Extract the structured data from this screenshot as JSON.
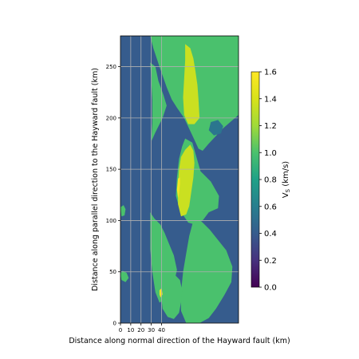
{
  "chart_data": {
    "type": "heatmap",
    "title": "",
    "xlabel": "Distance along normal direction of the Hayward fault (km)",
    "ylabel": "Distance along parallel direction to the Hayward fault (km)",
    "x_ticks": [
      0,
      10,
      20,
      30,
      40
    ],
    "x_tick_labels": [
      "0",
      "10",
      "20",
      "30",
      "40"
    ],
    "y_ticks": [
      0,
      50,
      100,
      150,
      200,
      250
    ],
    "y_tick_labels": [
      "0",
      "50",
      "100",
      "150",
      "200",
      "250"
    ],
    "xlim": [
      0,
      115
    ],
    "ylim": [
      0,
      280
    ],
    "grid": true,
    "colorbar": {
      "label_base": "V",
      "label_sub": "S",
      "label_unit": " (km/s)",
      "range": [
        0.0,
        1.6
      ],
      "ticks": [
        0.0,
        0.2,
        0.4,
        0.6,
        0.8,
        1.0,
        1.2,
        1.4,
        1.6
      ],
      "tick_labels": [
        "0.0",
        "0.2",
        "0.4",
        "0.6",
        "0.8",
        "1.0",
        "1.2",
        "1.4",
        "1.6"
      ],
      "colormap": "viridis"
    },
    "background_value": 0.4,
    "regions": [
      {
        "name": "east-block-upper",
        "value": 1.0,
        "polygon": [
          [
            29,
            280
          ],
          [
            115,
            280
          ],
          [
            115,
            203
          ],
          [
            100,
            190
          ],
          [
            86,
            175
          ],
          [
            80,
            168
          ],
          [
            76,
            170
          ],
          [
            70,
            183
          ],
          [
            62,
            200
          ],
          [
            55,
            210
          ],
          [
            50,
            218
          ],
          [
            45,
            230
          ],
          [
            38,
            250
          ],
          [
            32,
            268
          ]
        ]
      },
      {
        "name": "west-strip-upper",
        "value": 1.0,
        "polygon": [
          [
            29,
            254
          ],
          [
            34,
            250
          ],
          [
            37,
            236
          ],
          [
            42,
            222
          ],
          [
            45,
            212
          ],
          [
            41,
            200
          ],
          [
            34,
            186
          ],
          [
            30,
            177
          ],
          [
            31,
            195
          ],
          [
            31,
            218
          ],
          [
            30,
            238
          ]
        ]
      },
      {
        "name": "central-block",
        "value": 1.0,
        "polygon": [
          [
            63,
            180
          ],
          [
            70,
            176
          ],
          [
            74,
            162
          ],
          [
            78,
            148
          ],
          [
            88,
            138
          ],
          [
            96,
            124
          ],
          [
            95,
            112
          ],
          [
            86,
            108
          ],
          [
            80,
            100
          ],
          [
            73,
            96
          ],
          [
            66,
            98
          ],
          [
            58,
            110
          ],
          [
            54,
            124
          ],
          [
            55,
            142
          ],
          [
            57,
            160
          ],
          [
            60,
            172
          ]
        ]
      },
      {
        "name": "east-block-lower",
        "value": 1.0,
        "polygon": [
          [
            71,
            100
          ],
          [
            79,
            99
          ],
          [
            87,
            91
          ],
          [
            95,
            81
          ],
          [
            103,
            71
          ],
          [
            109,
            55
          ],
          [
            108,
            40
          ],
          [
            101,
            27
          ],
          [
            93,
            14
          ],
          [
            86,
            5
          ],
          [
            77,
            0
          ],
          [
            64,
            0
          ],
          [
            59,
            12
          ],
          [
            59,
            30
          ],
          [
            61,
            50
          ],
          [
            64,
            68
          ],
          [
            67,
            85
          ]
        ]
      },
      {
        "name": "west-strip-lower",
        "value": 1.0,
        "polygon": [
          [
            29,
            108
          ],
          [
            33,
            102
          ],
          [
            39,
            96
          ],
          [
            43,
            88
          ],
          [
            47,
            78
          ],
          [
            52,
            66
          ],
          [
            55,
            52
          ],
          [
            52,
            38
          ],
          [
            47,
            28
          ],
          [
            42,
            22
          ],
          [
            38,
            20
          ],
          [
            34,
            30
          ],
          [
            31,
            50
          ],
          [
            29,
            72
          ],
          [
            29,
            90
          ]
        ]
      },
      {
        "name": "southwest-patch",
        "value": 1.0,
        "polygon": [
          [
            46,
            47
          ],
          [
            52,
            48
          ],
          [
            58,
            42
          ],
          [
            60,
            32
          ],
          [
            59,
            20
          ],
          [
            57,
            10
          ],
          [
            52,
            4
          ],
          [
            46,
            6
          ],
          [
            41,
            14
          ],
          [
            40,
            24
          ],
          [
            42,
            36
          ]
        ]
      },
      {
        "name": "far-west-speck",
        "value": 1.0,
        "polygon": [
          [
            0,
            48
          ],
          [
            2,
            51
          ],
          [
            6,
            49
          ],
          [
            8,
            44
          ],
          [
            5,
            40
          ],
          [
            1,
            42
          ]
        ]
      },
      {
        "name": "west-edge-speck",
        "value": 1.0,
        "polygon": [
          [
            0,
            113
          ],
          [
            3,
            115
          ],
          [
            5,
            111
          ],
          [
            4,
            105
          ],
          [
            1,
            104
          ]
        ]
      },
      {
        "name": "high-velocity-upper",
        "value": 1.35,
        "polygon": [
          [
            63,
            272
          ],
          [
            68,
            268
          ],
          [
            71,
            258
          ],
          [
            73,
            246
          ],
          [
            75,
            232
          ],
          [
            76,
            218
          ],
          [
            77,
            200
          ],
          [
            72,
            194
          ],
          [
            66,
            194
          ],
          [
            62,
            203
          ],
          [
            61,
            220
          ],
          [
            62,
            238
          ],
          [
            63,
            256
          ]
        ]
      },
      {
        "name": "high-velocity-lower",
        "value": 1.35,
        "polygon": [
          [
            63,
            169
          ],
          [
            68,
            174
          ],
          [
            71,
            168
          ],
          [
            72,
            156
          ],
          [
            71,
            142
          ],
          [
            69,
            128
          ],
          [
            67,
            114
          ],
          [
            64,
            106
          ],
          [
            59,
            104
          ],
          [
            56,
            116
          ],
          [
            56,
            134
          ],
          [
            57,
            150
          ],
          [
            59,
            162
          ]
        ]
      },
      {
        "name": "peak-velocity-sliver",
        "value": 1.55,
        "polygon": [
          [
            56,
            141
          ],
          [
            58,
            142
          ],
          [
            58,
            136
          ],
          [
            57,
            126
          ],
          [
            56,
            122
          ],
          [
            55,
            130
          ]
        ]
      },
      {
        "name": "low-velocity-pocket",
        "value": 0.55,
        "polygon": [
          [
            88,
            196
          ],
          [
            95,
            198
          ],
          [
            100,
            192
          ],
          [
            98,
            185
          ],
          [
            91,
            183
          ],
          [
            86,
            188
          ]
        ]
      },
      {
        "name": "peak-velocity-speck",
        "value": 1.55,
        "polygon": [
          [
            38,
            32
          ],
          [
            40,
            34
          ],
          [
            41,
            28
          ],
          [
            39,
            25
          ],
          [
            38,
            28
          ]
        ]
      }
    ]
  }
}
